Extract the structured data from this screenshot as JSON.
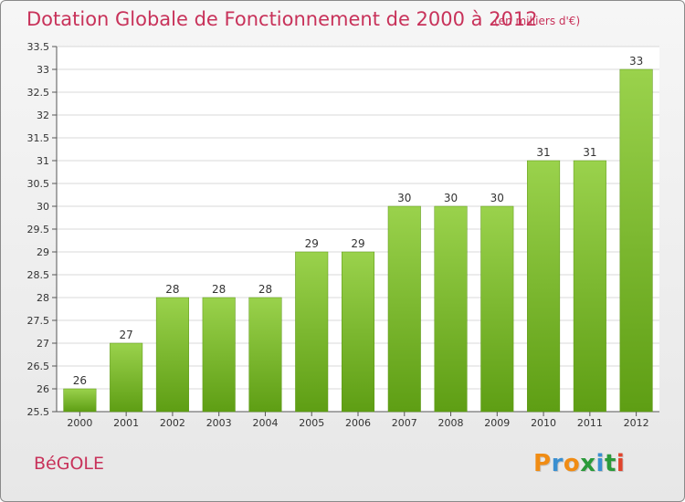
{
  "title": "Dotation Globale de Fonctionnement de 2000 à 2012",
  "subtitle": "(en milliers d'€)",
  "town": "BéGOLE",
  "brand": {
    "letters": [
      "P",
      "r",
      "o",
      "x",
      "i",
      "t",
      "i"
    ],
    "colors": [
      "#f08c14",
      "#3a8fd0",
      "#f08c14",
      "#2a9a3a",
      "#3a8fd0",
      "#2a9a3a",
      "#e0442c"
    ]
  },
  "colors": {
    "accent": "#c8325a",
    "bar_top": "#9ad24c",
    "bar_bottom": "#5e9e14"
  },
  "chart_data": {
    "type": "bar",
    "categories": [
      "2000",
      "2001",
      "2002",
      "2003",
      "2004",
      "2005",
      "2006",
      "2007",
      "2008",
      "2009",
      "2010",
      "2011",
      "2012"
    ],
    "values": [
      26,
      27,
      28,
      28,
      28,
      29,
      29,
      30,
      30,
      30,
      31,
      31,
      33
    ],
    "data_labels": [
      "26",
      "27",
      "28",
      "28",
      "28",
      "29",
      "29",
      "30",
      "30",
      "30",
      "31",
      "31",
      "33"
    ],
    "yticks": [
      "25.5",
      "26",
      "26.5",
      "27",
      "27.5",
      "28",
      "28.5",
      "29",
      "29.5",
      "30",
      "30.5",
      "31",
      "31.5",
      "32",
      "32.5",
      "33",
      "33.5"
    ],
    "ylim": [
      25.5,
      33.5
    ],
    "grid": true
  }
}
